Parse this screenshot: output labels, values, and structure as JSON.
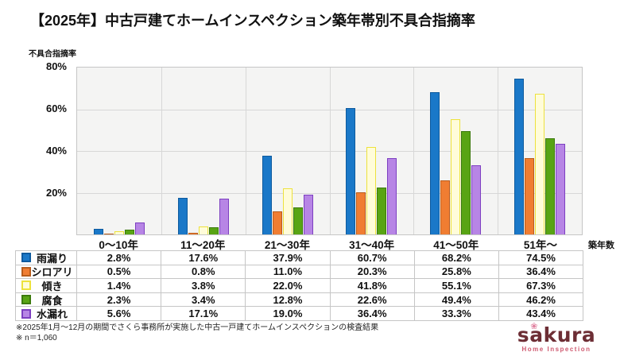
{
  "title": "【2025年】中古戸建てホームインスペクション築年帯別不具合指摘率",
  "chart_data": {
    "type": "bar",
    "title": "【2025年】中古戸建てホームインスペクション築年帯別不具合指摘率",
    "ylabel": "不具合指摘率",
    "xlabel": "築年数",
    "ylim": [
      0,
      80
    ],
    "yticks": [
      "80%",
      "60%",
      "40%",
      "20%"
    ],
    "grid": true,
    "legend_position": "table-left",
    "categories": [
      "0〜10年",
      "11〜20年",
      "21〜30年",
      "31〜40年",
      "41〜50年",
      "51年〜"
    ],
    "series": [
      {
        "name": "雨漏り",
        "fill": "#1a78c8",
        "border": "#0d5a9e",
        "values": [
          2.8,
          17.6,
          37.9,
          60.7,
          68.2,
          74.5
        ]
      },
      {
        "name": "シロアリ",
        "fill": "#f07d32",
        "border": "#b85c1b",
        "values": [
          0.5,
          0.8,
          11.0,
          20.3,
          25.8,
          36.4
        ]
      },
      {
        "name": "傾き",
        "fill": "#fffcd9",
        "border": "#ede23c",
        "values": [
          1.4,
          3.8,
          22.0,
          41.8,
          55.1,
          67.3
        ]
      },
      {
        "name": "腐食",
        "fill": "#58a414",
        "border": "#3c7a0c",
        "values": [
          2.3,
          3.4,
          12.8,
          22.6,
          49.4,
          46.2
        ]
      },
      {
        "name": "水漏れ",
        "fill": "#b785e5",
        "border": "#7d3fc1",
        "values": [
          5.6,
          17.1,
          19.0,
          36.4,
          33.3,
          43.4
        ]
      }
    ]
  },
  "footnotes": [
    "※2025年1月〜12月の期間でさくら事務所が実施した中古一戸建てホームインスペクションの検査結果",
    "※ n＝1,060"
  ],
  "logo": {
    "name": "sakura",
    "name_part1": "s",
    "name_part2": "a",
    "name_part3": "kura",
    "flower_icon": "❀",
    "subtitle": "Home Inspection",
    "brand_color": "#6d2e35",
    "accent_color": "#cf5a70"
  }
}
